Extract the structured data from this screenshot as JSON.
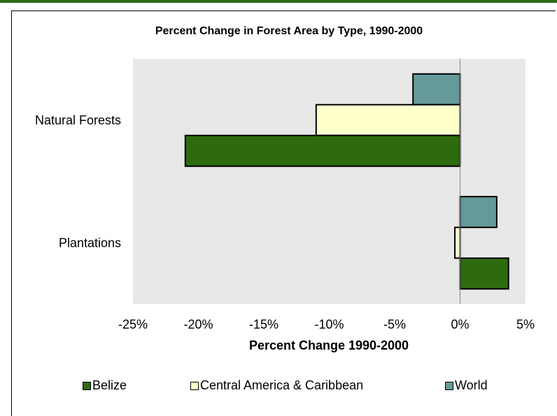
{
  "chart_data": {
    "type": "bar",
    "orientation": "horizontal",
    "title": "Percent Change in Forest Area by Type, 1990-2000",
    "xlabel": "Percent Change 1990-2000",
    "ylabel": "",
    "categories": [
      "Natural Forests",
      "Plantations"
    ],
    "series": [
      {
        "name": "Belize",
        "color": "#2e6b0e",
        "values": [
          -21.0,
          3.7
        ]
      },
      {
        "name": "Central America & Caribbean",
        "color": "#ffffcc",
        "values": [
          -11.0,
          -0.4
        ]
      },
      {
        "name": "World",
        "color": "#669999",
        "values": [
          -3.6,
          2.8
        ]
      }
    ],
    "xlim": [
      -25,
      5
    ],
    "xticks": [
      "-25%",
      "-20%",
      "-15%",
      "-10%",
      "-5%",
      "0%",
      "5%"
    ],
    "xtick_values": [
      -25,
      -20,
      -15,
      -10,
      -5,
      0,
      5
    ],
    "plot_background": "#e8e8e8",
    "grid": false,
    "legend_position": "bottom"
  }
}
